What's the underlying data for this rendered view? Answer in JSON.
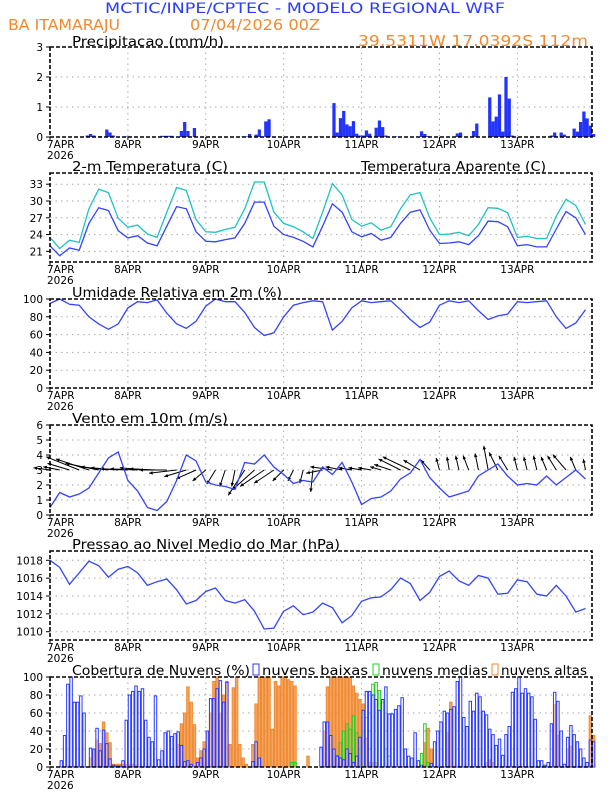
{
  "header": {
    "title": "MCTIC/INPE/CPTEC - MODELO REGIONAL WRF",
    "location": "BA ITAMARAJU",
    "run": "07/04/2026 00Z",
    "coords": "39.5311W 17.0392S 112m"
  },
  "x_axis": {
    "ticks": [
      "7APR",
      "8APR",
      "9APR",
      "10APR",
      "11APR",
      "12APR",
      "13APR"
    ],
    "year": "2026"
  },
  "colors": {
    "title": "#2b3bff",
    "header_orange": "#f08a30",
    "line_blue": "#3344ff",
    "apparent_cyan": "#1ec2c2",
    "low_clouds": "#2b3bff",
    "mid_clouds": "#22d022",
    "high_clouds": "#f08a30"
  },
  "chart_data": [
    {
      "type": "bar",
      "title": "Precipitacao (mm/h)",
      "ylim": [
        0,
        3
      ],
      "yticks": [
        0,
        1,
        2,
        3
      ],
      "grid": true,
      "values": [
        0,
        0,
        0,
        0,
        0,
        0,
        0,
        0,
        0,
        0,
        0,
        0.05,
        0.1,
        0.05,
        0,
        0.03,
        0,
        0.25,
        0.15,
        0.05,
        0,
        0,
        0,
        0.02,
        0.02,
        0,
        0,
        0,
        0,
        0,
        0,
        0,
        0,
        0,
        0.04,
        0.04,
        0.04,
        0.04,
        0,
        0,
        0.2,
        0.5,
        0.2,
        0,
        0.3,
        0,
        0,
        0,
        0,
        0,
        0,
        0,
        0,
        0,
        0,
        0,
        0,
        0,
        0,
        0.02,
        0.02,
        0.1,
        0,
        0.08,
        0.25,
        0,
        0.52,
        0.59,
        0,
        0,
        0,
        0,
        0,
        0,
        0,
        0,
        0,
        0,
        0,
        0,
        0,
        0,
        0,
        0.02,
        0,
        0,
        0,
        1.13,
        0.15,
        0.63,
        0.87,
        0.42,
        0.36,
        0.53,
        0.11,
        0.05,
        0.05,
        0.22,
        0.11,
        0,
        0.31,
        0.55,
        0.33,
        0.05,
        0,
        0,
        0.02,
        0,
        0,
        0,
        0,
        0,
        0,
        0,
        0.19,
        0.1,
        0.03,
        0,
        0,
        0,
        0,
        0,
        0,
        0,
        0,
        0.12,
        0.15,
        0,
        0,
        0,
        0.2,
        0.45,
        0,
        0,
        0,
        1.32,
        0.52,
        0.68,
        1.42,
        0.18,
        2.0,
        1.28,
        0.05,
        0,
        0,
        0,
        0,
        0,
        0.02,
        0,
        0,
        0,
        0,
        0,
        0.05,
        0.15,
        0,
        0.15,
        0.08,
        0,
        0,
        0.28,
        0.18,
        0.5,
        0.85,
        0.62,
        0.38,
        0.1
      ]
    },
    {
      "type": "line",
      "title": "2-m Temperatura (C)",
      "ylim": [
        19.1,
        35
      ],
      "yticks": [
        21,
        24,
        27,
        30,
        33
      ],
      "grid": true,
      "series": [
        {
          "name": "",
          "color": "#3344ff",
          "values": [
            22,
            20.2,
            21.6,
            21.2,
            26,
            28.8,
            28.3,
            24.7,
            23.4,
            23.8,
            22.5,
            22,
            25.5,
            29,
            28.6,
            24.5,
            22.8,
            22.7,
            23.1,
            23.4,
            26,
            29.8,
            29.8,
            25.5,
            24,
            23.5,
            22.8,
            21.8,
            25.5,
            29.5,
            28,
            24.5,
            23.6,
            24.2,
            23,
            23.5,
            26,
            28,
            28.4,
            24.8,
            22.4,
            22.5,
            22.7,
            22.2,
            23.8,
            26.4,
            26.3,
            25.4,
            22,
            22.2,
            21.8,
            21.8,
            25,
            28.1,
            27,
            24
          ]
        },
        {
          "name": "Temperatura Aparente (C)",
          "color": "#1ec2c2",
          "values": [
            23.5,
            21.5,
            23,
            22.6,
            28.6,
            32.1,
            31.5,
            26.9,
            25.3,
            25.7,
            24.1,
            23.5,
            28,
            32.4,
            31.9,
            26.7,
            24.5,
            24.4,
            24.9,
            25.3,
            28.6,
            33.4,
            33.4,
            28,
            26,
            25.4,
            24.5,
            23.3,
            28,
            33.1,
            31.1,
            26.7,
            25.5,
            26.1,
            24.8,
            25.4,
            28.6,
            31.1,
            31.5,
            27,
            24,
            24.1,
            24.4,
            23.8,
            25.8,
            28.8,
            28.7,
            27.9,
            23.5,
            23.7,
            23.3,
            23.3,
            27.3,
            30.3,
            29.2,
            25.8
          ]
        }
      ]
    },
    {
      "type": "line",
      "title": "Umidade Relativa em 2m (%)",
      "ylim": [
        0,
        100
      ],
      "yticks": [
        0,
        20,
        40,
        60,
        80,
        100
      ],
      "grid": true,
      "series": [
        {
          "name": "",
          "color": "#3344ff",
          "values": [
            95,
            100,
            94,
            93,
            80,
            72,
            66,
            72,
            90,
            97,
            96,
            99,
            84,
            72,
            67,
            75,
            92,
            100,
            97,
            97,
            85,
            68,
            59,
            62,
            80,
            93,
            96,
            98,
            97,
            65,
            75,
            90,
            98,
            96,
            97,
            98,
            88,
            77,
            68,
            74,
            93,
            98,
            96,
            98,
            87,
            77,
            81,
            83,
            97,
            96,
            97,
            98,
            80,
            67,
            73,
            88
          ]
        }
      ]
    },
    {
      "type": "line",
      "title": "Vento em 10m (m/s)",
      "ylim": [
        0,
        6
      ],
      "yticks": [
        0,
        1,
        2,
        3,
        4,
        5,
        6
      ],
      "grid": true,
      "series": [
        {
          "name": "",
          "color": "#3344ff",
          "values": [
            0.5,
            1.5,
            1.2,
            1.4,
            1.8,
            2.8,
            3.8,
            4.2,
            2.3,
            1.6,
            0.5,
            0.3,
            0.9,
            2.3,
            4.0,
            3.6,
            2.2,
            2.0,
            1.9,
            1.7,
            3.5,
            3.4,
            4.0,
            3.2,
            2.7,
            2.1,
            2.3,
            2.2,
            3.2,
            2.7,
            3.5,
            2.2,
            0.7,
            1.1,
            1.2,
            1.6,
            2.4,
            2.8,
            3.7,
            2.5,
            1.8,
            1.2,
            1.4,
            1.6,
            2.6,
            3.0,
            3.4,
            2.6,
            2.0,
            2.1,
            2.0,
            2.6,
            2.0,
            2.5,
            3.0,
            2.4
          ]
        }
      ],
      "vectors": {
        "baseline": 3,
        "u": [
          -1.5,
          -1.5,
          -2,
          -3,
          -3,
          -3,
          -2.5,
          -2.5,
          -2.5,
          -2.5,
          -2.5,
          -2.5,
          -2.5,
          -2.5,
          -2,
          -1.8,
          -1.2,
          -0.8,
          -0.5,
          -0.3,
          -1.5,
          -2,
          -2.2,
          -1.8,
          -1,
          -0.5,
          -0.3,
          -0.2,
          -1.5,
          -2,
          -1.5,
          -1.2,
          -1.2,
          -1.2,
          -1,
          -1.5,
          -2,
          -2.5,
          -1.5,
          -0.8,
          -0.3,
          -0.2,
          -0.3,
          -0.5,
          -0.3,
          -0.4,
          -0.8,
          -0.8,
          -0.3,
          -0.3,
          -0.3,
          -0.5,
          -0.8,
          -1.2,
          -0.5,
          -0.2
        ],
        "v": [
          0.2,
          0.3,
          0.6,
          1.2,
          1,
          0.6,
          0.3,
          0.2,
          0.1,
          0.1,
          0.2,
          0.1,
          0,
          -0.3,
          -0.6,
          -0.8,
          -1,
          -1.3,
          -1.5,
          -1.5,
          -2.3,
          -1.8,
          -1.5,
          -1.2,
          -1,
          -1,
          -1.2,
          -2,
          -0.3,
          0.3,
          0.3,
          0.2,
          0.2,
          0.2,
          0.3,
          0.5,
          1,
          1.2,
          0.9,
          0.9,
          1.1,
          1.2,
          1.3,
          1.3,
          1.5,
          2.2,
          1.6,
          1.3,
          1.2,
          1.2,
          1.3,
          1.2,
          1.3,
          1.4,
          1.2,
          1.0
        ]
      }
    },
    {
      "type": "line",
      "title": "Pressao ao Nivel Medio do Mar (hPa)",
      "ylim": [
        1009.07,
        1019.04
      ],
      "yticks": [
        1010,
        1012,
        1014,
        1016,
        1018
      ],
      "grid": true,
      "series": [
        {
          "name": "",
          "color": "#3344ff",
          "values": [
            1018,
            1017.2,
            1015.3,
            1016.6,
            1017.9,
            1017.4,
            1016.1,
            1017,
            1017.3,
            1016.6,
            1015.2,
            1015.6,
            1015.9,
            1014.7,
            1013.1,
            1013.5,
            1014.5,
            1014.9,
            1013.5,
            1013.2,
            1013.6,
            1012.3,
            1010.3,
            1010.4,
            1012.3,
            1012.9,
            1011.9,
            1012.2,
            1013.2,
            1012.7,
            1011,
            1011.8,
            1013.4,
            1013.8,
            1013.9,
            1014.7,
            1016,
            1015.4,
            1013.5,
            1014.4,
            1016.2,
            1016.8,
            1015.7,
            1015.2,
            1016.3,
            1016,
            1014.2,
            1014.3,
            1015.8,
            1015.6,
            1014.2,
            1014,
            1015.2,
            1014,
            1012.2,
            1012.6
          ]
        }
      ]
    },
    {
      "type": "bar",
      "title": "Cobertura de Nuvens (%)",
      "ylim": [
        0,
        100
      ],
      "yticks": [
        0,
        20,
        40,
        60,
        80,
        100
      ],
      "grid": true,
      "legend": "top",
      "series": [
        {
          "name": "nuvens altas",
          "color": "#f08a30",
          "values": [
            0,
            0,
            0,
            0,
            0,
            0,
            0,
            0,
            0,
            0,
            0,
            0,
            10,
            20,
            30,
            26,
            50,
            38,
            27,
            3,
            3,
            3,
            3,
            3,
            3,
            3,
            2,
            0,
            0,
            0,
            0,
            0,
            0,
            0,
            0,
            0,
            0,
            0,
            0,
            25,
            48,
            60,
            89,
            72,
            47,
            10,
            18,
            28,
            40,
            60,
            95,
            100,
            60,
            80,
            95,
            25,
            88,
            100,
            25,
            10,
            3,
            0,
            25,
            70,
            100,
            100,
            100,
            100,
            42,
            95,
            90,
            100,
            100,
            97,
            95,
            90,
            0,
            0,
            0,
            12,
            0,
            0,
            0,
            0,
            40,
            89,
            100,
            100,
            100,
            100,
            100,
            100,
            100,
            90,
            82,
            75,
            70,
            32,
            5,
            5,
            5,
            0,
            0,
            0,
            0,
            0,
            0,
            0,
            0,
            0,
            0,
            0,
            0,
            0,
            0,
            27,
            43,
            20,
            0,
            0,
            0,
            0,
            38,
            72,
            0,
            0,
            0,
            0,
            0,
            0,
            0,
            0,
            0,
            0,
            5,
            8,
            5,
            0,
            0,
            0,
            0,
            0,
            0,
            0,
            0,
            0,
            0,
            0,
            0,
            0,
            0,
            0,
            0,
            0,
            0,
            69,
            35,
            0,
            0,
            20,
            23,
            0,
            0,
            0,
            0,
            0,
            57,
            35
          ]
        },
        {
          "name": "nuvens medias",
          "color": "#22d022",
          "values": [
            0,
            0,
            0,
            0,
            0,
            0,
            0,
            0,
            0,
            0,
            0,
            0,
            0,
            0,
            0,
            0,
            0,
            0,
            0,
            0,
            0,
            0,
            0,
            0,
            0,
            0,
            0,
            0,
            0,
            0,
            0,
            0,
            0,
            0,
            0,
            0,
            0,
            0,
            0,
            0,
            0,
            0,
            0,
            0,
            0,
            0,
            0,
            0,
            0,
            0,
            0,
            0,
            0,
            0,
            0,
            0,
            0,
            0,
            0,
            0,
            0,
            0,
            0,
            0,
            0,
            0,
            0,
            0,
            0,
            0,
            0,
            0,
            0,
            0,
            5,
            5,
            0,
            0,
            0,
            0,
            0,
            0,
            0,
            0,
            0,
            0,
            0,
            0,
            13,
            27,
            40,
            48,
            42,
            57,
            38,
            20,
            40,
            55,
            60,
            92,
            94,
            85,
            72,
            20,
            12,
            0,
            0,
            0,
            0,
            0,
            0,
            0,
            0,
            0,
            15,
            48,
            5,
            0,
            0,
            0,
            0,
            0,
            0,
            0,
            0,
            0,
            0,
            0,
            0,
            0,
            0,
            0,
            0,
            0,
            0,
            0,
            0,
            0,
            0,
            0,
            0,
            0,
            0,
            0,
            0,
            0,
            0,
            0,
            0,
            0,
            0,
            0,
            0,
            0,
            0,
            0,
            0,
            0,
            0,
            0,
            0,
            0,
            0,
            0,
            0,
            0,
            0,
            0
          ]
        },
        {
          "name": "nuvens baixas",
          "color": "#2b3bff",
          "values": [
            0,
            0,
            0,
            7,
            35,
            92,
            100,
            72,
            72,
            79,
            60,
            0,
            21,
            20,
            43,
            18,
            41,
            26,
            9,
            2,
            1,
            1,
            7,
            52,
            80,
            84,
            90,
            84,
            87,
            52,
            33,
            28,
            79,
            8,
            18,
            38,
            40,
            34,
            37,
            39,
            24,
            6,
            7,
            3,
            0,
            5,
            10,
            20,
            40,
            76,
            76,
            87,
            96,
            72,
            94,
            0,
            0,
            0,
            0,
            0,
            0,
            0,
            6,
            28,
            10,
            0,
            0,
            0,
            0,
            0,
            0,
            0,
            0,
            0,
            0,
            0,
            0,
            0,
            0,
            0,
            0,
            0,
            0,
            22,
            50,
            50,
            35,
            20,
            12,
            10,
            8,
            20,
            15,
            5,
            12,
            33,
            63,
            84,
            84,
            80,
            75,
            63,
            75,
            89,
            59,
            59,
            64,
            68,
            77,
            20,
            12,
            10,
            38,
            7,
            2,
            0,
            0,
            4,
            28,
            40,
            50,
            62,
            60,
            64,
            67,
            95,
            100,
            55,
            45,
            73,
            62,
            82,
            78,
            62,
            58,
            42,
            36,
            24,
            31,
            13,
            36,
            45,
            83,
            87,
            100,
            82,
            87,
            82,
            78,
            53,
            7,
            7,
            2,
            5,
            48,
            83,
            73,
            40,
            3,
            33,
            46,
            36,
            28,
            20,
            10,
            5,
            30,
            28
          ]
        }
      ]
    }
  ]
}
